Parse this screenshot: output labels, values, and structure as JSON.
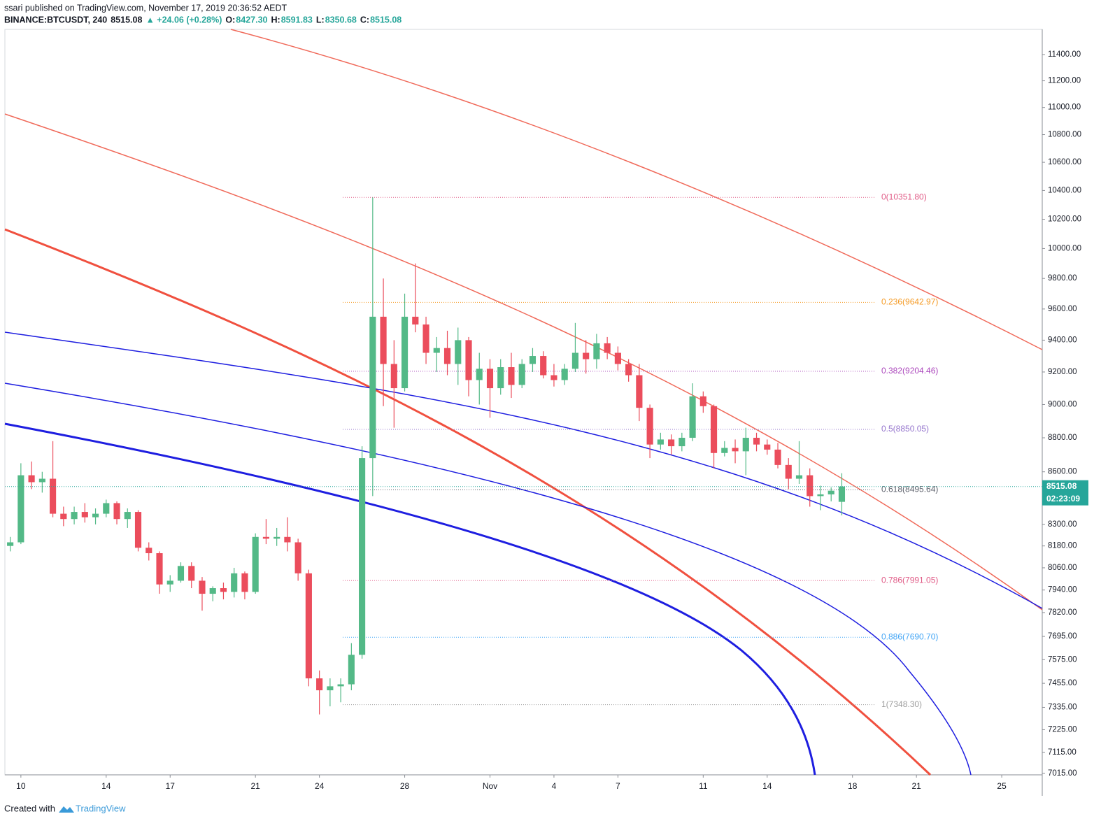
{
  "chart_data": {
    "type": "candlestick",
    "title": "ssari published on TradingView.com, November 17, 2019 20:36:52 AEDT",
    "subtitle_parts": [
      {
        "text": "BINANCE:BTCUSDT, 240",
        "color": "#131722"
      },
      {
        "text": "8515.08",
        "color": "#131722"
      },
      {
        "text": "▲ +24.06 (+0.28%)",
        "color": "#26a69a"
      },
      {
        "text": "O:",
        "color": "#131722"
      },
      {
        "text": "8427.30",
        "color": "#26a69a"
      },
      {
        "text": "H:",
        "color": "#131722"
      },
      {
        "text": "8591.83",
        "color": "#26a69a"
      },
      {
        "text": "L:",
        "color": "#131722"
      },
      {
        "text": "8350.68",
        "color": "#26a69a"
      },
      {
        "text": "C:",
        "color": "#131722"
      },
      {
        "text": "8515.08",
        "color": "#26a69a"
      }
    ],
    "log_scale": true,
    "up_color": "#53b987",
    "down_color": "#eb4d5c",
    "x": [
      9.5,
      10,
      10.5,
      11,
      11.5,
      12,
      12.5,
      13,
      13.5,
      14,
      14.5,
      15,
      15.5,
      16,
      16.5,
      17,
      17.5,
      18,
      18.5,
      19,
      19.5,
      20,
      20.5,
      21,
      21.5,
      22,
      22.5,
      23,
      23.5,
      24,
      24.5,
      25,
      25.5,
      26,
      26.5,
      27,
      27.5,
      28,
      28.5,
      29,
      29.5,
      30,
      30.5,
      31,
      31.5,
      32,
      32.5,
      33,
      33.5,
      34,
      34.5,
      35,
      35.5,
      36,
      36.5,
      37,
      37.5,
      38,
      38.5,
      39,
      39.5,
      40,
      40.5,
      41,
      41.5,
      42,
      42.5,
      43,
      43.5,
      44,
      44.5,
      45,
      45.5,
      46,
      46.5,
      47,
      47.5,
      48,
      48.5
    ],
    "ohlc": [
      [
        8180,
        8230,
        8150,
        8200
      ],
      [
        8200,
        8650,
        8190,
        8580
      ],
      [
        8580,
        8660,
        8500,
        8540
      ],
      [
        8540,
        8600,
        8480,
        8560
      ],
      [
        8560,
        8780,
        8340,
        8360
      ],
      [
        8360,
        8400,
        8290,
        8330
      ],
      [
        8330,
        8400,
        8300,
        8370
      ],
      [
        8370,
        8420,
        8310,
        8340
      ],
      [
        8340,
        8390,
        8300,
        8360
      ],
      [
        8360,
        8440,
        8340,
        8420
      ],
      [
        8420,
        8430,
        8300,
        8330
      ],
      [
        8330,
        8390,
        8280,
        8370
      ],
      [
        8370,
        8380,
        8150,
        8170
      ],
      [
        8170,
        8200,
        8100,
        8140
      ],
      [
        8140,
        8150,
        7920,
        7970
      ],
      [
        7970,
        8020,
        7930,
        7990
      ],
      [
        7990,
        8090,
        7980,
        8070
      ],
      [
        8070,
        8090,
        7950,
        7990
      ],
      [
        7990,
        8010,
        7830,
        7920
      ],
      [
        7920,
        7960,
        7880,
        7950
      ],
      [
        7950,
        7980,
        7890,
        7930
      ],
      [
        7930,
        8060,
        7900,
        8030
      ],
      [
        8030,
        8040,
        7890,
        7930
      ],
      [
        7930,
        8250,
        7920,
        8230
      ],
      [
        8230,
        8330,
        8190,
        8220
      ],
      [
        8220,
        8280,
        8180,
        8230
      ],
      [
        8230,
        8340,
        8150,
        8200
      ],
      [
        8200,
        8220,
        7990,
        8030
      ],
      [
        8030,
        8050,
        7440,
        7480
      ],
      [
        7480,
        7520,
        7300,
        7420
      ],
      [
        7420,
        7480,
        7340,
        7440
      ],
      [
        7440,
        7480,
        7360,
        7450
      ],
      [
        7450,
        7660,
        7420,
        7600
      ],
      [
        7600,
        8750,
        7580,
        8680
      ],
      [
        8680,
        10351.8,
        8460,
        9550
      ],
      [
        9550,
        9800,
        8990,
        9250
      ],
      [
        9250,
        9400,
        8860,
        9100
      ],
      [
        9100,
        9700,
        9080,
        9550
      ],
      [
        9550,
        9900,
        9450,
        9500
      ],
      [
        9500,
        9550,
        9250,
        9320
      ],
      [
        9320,
        9420,
        9200,
        9350
      ],
      [
        9350,
        9460,
        9180,
        9250
      ],
      [
        9250,
        9480,
        9120,
        9400
      ],
      [
        9400,
        9420,
        9050,
        9150
      ],
      [
        9150,
        9320,
        9000,
        9220
      ],
      [
        9220,
        9280,
        8920,
        9100
      ],
      [
        9100,
        9280,
        9060,
        9230
      ],
      [
        9230,
        9320,
        9040,
        9120
      ],
      [
        9120,
        9280,
        9100,
        9250
      ],
      [
        9250,
        9350,
        9200,
        9300
      ],
      [
        9300,
        9330,
        9160,
        9180
      ],
      [
        9180,
        9250,
        9110,
        9150
      ],
      [
        9150,
        9250,
        9120,
        9220
      ],
      [
        9220,
        9510,
        9200,
        9320
      ],
      [
        9320,
        9400,
        9190,
        9280
      ],
      [
        9280,
        9440,
        9220,
        9380
      ],
      [
        9380,
        9420,
        9280,
        9320
      ],
      [
        9320,
        9360,
        9210,
        9250
      ],
      [
        9250,
        9280,
        9140,
        9180
      ],
      [
        9180,
        9250,
        8900,
        8980
      ],
      [
        8980,
        9000,
        8680,
        8760
      ],
      [
        8760,
        8830,
        8730,
        8790
      ],
      [
        8790,
        8820,
        8700,
        8750
      ],
      [
        8750,
        8830,
        8720,
        8800
      ],
      [
        8800,
        9130,
        8780,
        9050
      ],
      [
        9050,
        9080,
        8950,
        8990
      ],
      [
        8990,
        9000,
        8620,
        8710
      ],
      [
        8710,
        8780,
        8690,
        8740
      ],
      [
        8740,
        8790,
        8650,
        8720
      ],
      [
        8720,
        8860,
        8580,
        8800
      ],
      [
        8800,
        8830,
        8720,
        8760
      ],
      [
        8760,
        8790,
        8700,
        8730
      ],
      [
        8730,
        8770,
        8620,
        8640
      ],
      [
        8640,
        8680,
        8500,
        8560
      ],
      [
        8560,
        8780,
        8530,
        8580
      ],
      [
        8580,
        8620,
        8400,
        8460
      ],
      [
        8460,
        8520,
        8380,
        8470
      ],
      [
        8470,
        8510,
        8430,
        8491
      ],
      [
        8427.3,
        8591.83,
        8350.68,
        8515.08
      ]
    ],
    "xlim": [
      9.25,
      57.9
    ],
    "xticks": [
      {
        "value": 10,
        "label": "10"
      },
      {
        "value": 14,
        "label": "14"
      },
      {
        "value": 17,
        "label": "17"
      },
      {
        "value": 21,
        "label": "21"
      },
      {
        "value": 24,
        "label": "24"
      },
      {
        "value": 28,
        "label": "28"
      },
      {
        "value": 32,
        "label": "Nov"
      },
      {
        "value": 35,
        "label": "4"
      },
      {
        "value": 38,
        "label": "7"
      },
      {
        "value": 42,
        "label": "11"
      },
      {
        "value": 45,
        "label": "14"
      },
      {
        "value": 49,
        "label": "18"
      },
      {
        "value": 52,
        "label": "21"
      },
      {
        "value": 56,
        "label": "25"
      }
    ],
    "ylim": [
      7008,
      11596
    ],
    "yticks": [
      {
        "value": 11400,
        "label": "11400.00"
      },
      {
        "value": 11200,
        "label": "11200.00"
      },
      {
        "value": 11000,
        "label": "11000.00"
      },
      {
        "value": 10800,
        "label": "10800.00"
      },
      {
        "value": 10600,
        "label": "10600.00"
      },
      {
        "value": 10400,
        "label": "10400.00"
      },
      {
        "value": 10200,
        "label": "10200.00"
      },
      {
        "value": 10000,
        "label": "10000.00"
      },
      {
        "value": 9800,
        "label": "9800.00"
      },
      {
        "value": 9600,
        "label": "9600.00"
      },
      {
        "value": 9400,
        "label": "9400.00"
      },
      {
        "value": 9200,
        "label": "9200.00"
      },
      {
        "value": 9000,
        "label": "9000.00"
      },
      {
        "value": 8800,
        "label": "8800.00"
      },
      {
        "value": 8600,
        "label": "8600.00"
      },
      {
        "value": 8300,
        "label": "8300.00"
      },
      {
        "value": 8180,
        "label": "8180.00"
      },
      {
        "value": 8060,
        "label": "8060.00"
      },
      {
        "value": 7940,
        "label": "7940.00"
      },
      {
        "value": 7820,
        "label": "7820.00"
      },
      {
        "value": 7695,
        "label": "7695.00"
      },
      {
        "value": 7575,
        "label": "7575.00"
      },
      {
        "value": 7455,
        "label": "7455.00"
      },
      {
        "value": 7335,
        "label": "7335.00"
      },
      {
        "value": 7225,
        "label": "7225.00"
      },
      {
        "value": 7115,
        "label": "7115.00"
      },
      {
        "value": 7015,
        "label": "7015.00"
      }
    ],
    "fib_levels": [
      {
        "label": "0(10351.80)",
        "value": 10351.8,
        "color": "#e05a86"
      },
      {
        "label": "0.236(9642.97)",
        "value": 9642.97,
        "color": "#f59a23"
      },
      {
        "label": "0.382(9204.46)",
        "value": 9204.46,
        "color": "#ab47bc"
      },
      {
        "label": "0.5(8850.05)",
        "value": 8850.05,
        "color": "#9575cd"
      },
      {
        "label": "0.618(8495.64)",
        "value": 8495.64,
        "color": "#5d606b"
      },
      {
        "label": "0.786(7991.05)",
        "value": 7991.05,
        "color": "#e05a86"
      },
      {
        "label": "0.886(7690.70)",
        "value": 7690.7,
        "color": "#42a5f5"
      },
      {
        "label": "1(7348.30)",
        "value": 7348.3,
        "color": "#9e9e9e"
      }
    ],
    "last_price": 8515.08,
    "last_price_color": "#26a69a",
    "countdown": "02:23:09",
    "credit": "Created with",
    "brand": "TradingView"
  }
}
